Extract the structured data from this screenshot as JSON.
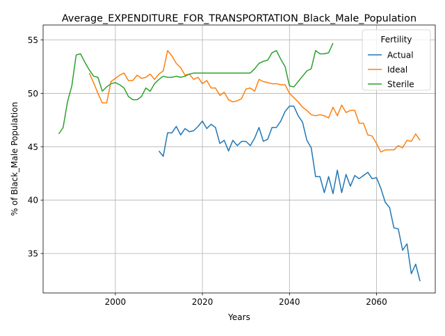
{
  "chart_data": {
    "type": "line",
    "title": "Average_EXPENDITURE_FOR_TRANSPORTATION_Black_Male_Population",
    "xlabel": "Years",
    "ylabel": "% of Black_Male Population",
    "xlim": [
      1983.4,
      2073.5
    ],
    "ylim": [
      31.3,
      56.4
    ],
    "xticks": [
      2000,
      2020,
      2040,
      2060
    ],
    "yticks": [
      35,
      40,
      45,
      50,
      55
    ],
    "grid": true,
    "legend": {
      "title": "Fertility",
      "position": "upper right"
    },
    "series": [
      {
        "name": "Actual",
        "color": "#1f77b4",
        "x": [
          2010,
          2011,
          2012,
          2013,
          2014,
          2015,
          2016,
          2017,
          2018,
          2019,
          2020,
          2021,
          2022,
          2023,
          2024,
          2025,
          2026,
          2027,
          2028,
          2029,
          2030,
          2031,
          2032,
          2033,
          2034,
          2035,
          2036,
          2037,
          2038,
          2039,
          2040,
          2041,
          2042,
          2043,
          2044,
          2045,
          2046,
          2047,
          2048,
          2049,
          2050,
          2051,
          2052,
          2053,
          2054,
          2055,
          2056,
          2057,
          2058,
          2059,
          2060,
          2061,
          2062,
          2063,
          2064,
          2065,
          2066,
          2067,
          2068,
          2069,
          2070
        ],
        "y": [
          44.6,
          44.1,
          46.3,
          46.3,
          46.9,
          46.1,
          46.7,
          46.4,
          46.5,
          46.9,
          47.4,
          46.7,
          47.1,
          46.8,
          45.3,
          45.6,
          44.6,
          45.6,
          45.1,
          45.5,
          45.5,
          45.1,
          45.8,
          46.8,
          45.5,
          45.7,
          46.8,
          46.8,
          47.4,
          48.3,
          48.8,
          48.8,
          47.9,
          47.3,
          45.6,
          44.9,
          42.2,
          42.2,
          40.7,
          42.2,
          40.6,
          42.8,
          40.7,
          42.4,
          41.3,
          42.3,
          42.0,
          42.3,
          42.6,
          42.0,
          42.1,
          41.1,
          39.8,
          39.3,
          37.4,
          37.3,
          35.3,
          35.9,
          33.1,
          34.0,
          32.4
        ]
      },
      {
        "name": "Ideal",
        "color": "#ff7f0e",
        "x": [
          1994,
          1995,
          1996,
          1997,
          1998,
          1999,
          2000,
          2001,
          2002,
          2003,
          2004,
          2005,
          2006,
          2007,
          2008,
          2009,
          2010,
          2011,
          2012,
          2013,
          2014,
          2015,
          2016,
          2017,
          2018,
          2019,
          2020,
          2021,
          2022,
          2023,
          2024,
          2025,
          2026,
          2027,
          2028,
          2029,
          2030,
          2031,
          2032,
          2033,
          2034,
          2035,
          2036,
          2037,
          2038,
          2039,
          2040,
          2041,
          2042,
          2043,
          2044,
          2045,
          2046,
          2047,
          2048,
          2049,
          2050,
          2051,
          2052,
          2053,
          2054,
          2055,
          2056,
          2057,
          2058,
          2059,
          2060,
          2061,
          2062,
          2063,
          2064,
          2065,
          2066,
          2067,
          2068,
          2069,
          2070
        ],
        "y": [
          51.9,
          51.0,
          50.0,
          49.1,
          49.1,
          51.1,
          51.4,
          51.7,
          51.9,
          51.2,
          51.2,
          51.7,
          51.4,
          51.5,
          51.8,
          51.3,
          51.8,
          52.1,
          54.0,
          53.5,
          52.8,
          52.4,
          51.7,
          51.8,
          51.3,
          51.5,
          50.9,
          51.2,
          50.5,
          50.5,
          49.8,
          50.1,
          49.4,
          49.2,
          49.3,
          49.5,
          50.4,
          50.5,
          50.2,
          51.3,
          51.1,
          51.0,
          50.9,
          50.9,
          50.8,
          50.8,
          50.0,
          49.6,
          49.2,
          48.7,
          48.4,
          48.0,
          47.9,
          48.0,
          47.9,
          47.7,
          48.7,
          47.9,
          48.9,
          48.2,
          48.4,
          48.4,
          47.2,
          47.2,
          46.1,
          46.0,
          45.3,
          44.5,
          44.7,
          44.7,
          44.7,
          45.1,
          44.9,
          45.6,
          45.5,
          46.2,
          45.6
        ]
      },
      {
        "name": "Sterile",
        "color": "#2ca02c",
        "x": [
          1987,
          1988,
          1989,
          1990,
          1991,
          1992,
          1993,
          1994,
          1995,
          1996,
          1997,
          1998,
          1999,
          2000,
          2001,
          2002,
          2003,
          2004,
          2005,
          2006,
          2007,
          2008,
          2009,
          2010,
          2011,
          2012,
          2013,
          2014,
          2015,
          2016,
          2017,
          2018,
          2019,
          2020,
          2021,
          2022,
          2023,
          2024,
          2025,
          2026,
          2027,
          2028,
          2029,
          2030,
          2031,
          2032,
          2033,
          2034,
          2035,
          2036,
          2037,
          2038,
          2039,
          2040,
          2041,
          2042,
          2043,
          2044,
          2045,
          2046,
          2047,
          2048,
          2049,
          2050
        ],
        "y": [
          46.2,
          46.8,
          49.2,
          50.7,
          53.6,
          53.7,
          52.9,
          52.2,
          51.6,
          51.5,
          50.2,
          50.6,
          50.9,
          51.0,
          50.8,
          50.5,
          49.7,
          49.4,
          49.4,
          49.7,
          50.5,
          50.2,
          50.9,
          51.3,
          51.6,
          51.5,
          51.5,
          51.6,
          51.5,
          51.6,
          51.8,
          51.9,
          51.9,
          51.9,
          51.9,
          51.9,
          51.9,
          51.9,
          51.9,
          51.9,
          51.9,
          51.9,
          51.9,
          51.9,
          51.9,
          52.3,
          52.8,
          53.0,
          53.1,
          53.8,
          54.0,
          53.2,
          52.5,
          50.7,
          50.6,
          51.1,
          51.6,
          52.1,
          52.3,
          54.0,
          53.7,
          53.7,
          53.8,
          54.7
        ]
      }
    ]
  }
}
